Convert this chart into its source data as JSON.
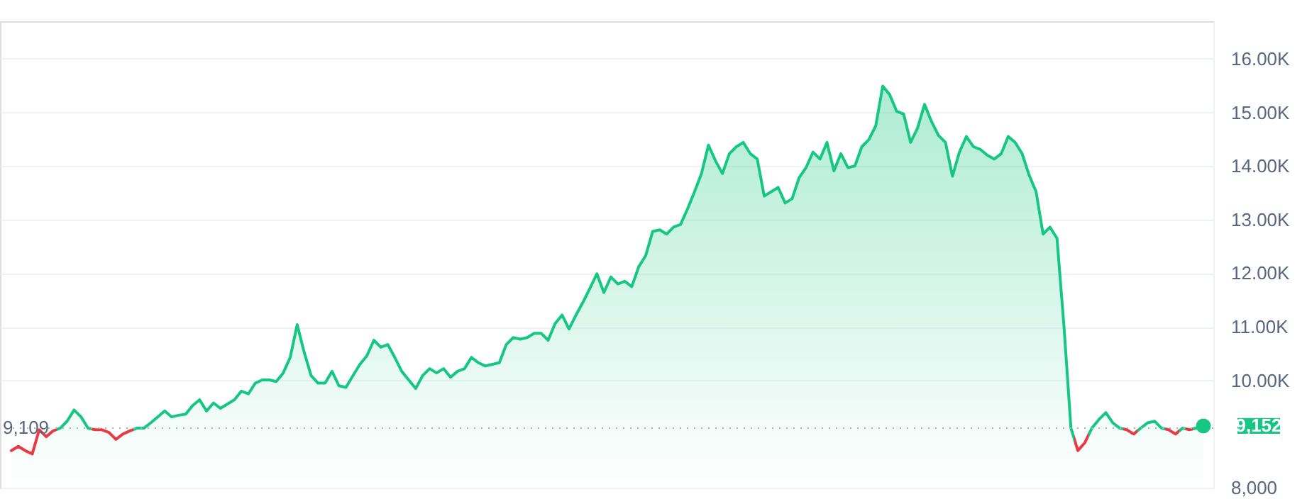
{
  "chart_data": {
    "type": "area",
    "categories": [
      null,
      null,
      null,
      null,
      null,
      null,
      null,
      null,
      null,
      null,
      null,
      null,
      null,
      null,
      null,
      null,
      null,
      null,
      null,
      null,
      null,
      null,
      null,
      null,
      null,
      null,
      null,
      null,
      null,
      null,
      null,
      null,
      null,
      null,
      null,
      null,
      null,
      null,
      null,
      null,
      null,
      null,
      null,
      null,
      null,
      null,
      null,
      null,
      null,
      null,
      null,
      null,
      null,
      null,
      null,
      null,
      null,
      null,
      null,
      null,
      null,
      null,
      null,
      null,
      null,
      null,
      null,
      null,
      null,
      null,
      null,
      null,
      null,
      null,
      null,
      null,
      null,
      null,
      null,
      null,
      null,
      null,
      null,
      null,
      null,
      null,
      null,
      null,
      null,
      null,
      null,
      null,
      null,
      null,
      null,
      null,
      null,
      null,
      null,
      null,
      null,
      null,
      null,
      null,
      null,
      null,
      null,
      null,
      null,
      null,
      null,
      null,
      null,
      null,
      null,
      null,
      null,
      null,
      null,
      null,
      null,
      null,
      null,
      null,
      null,
      null,
      null,
      null,
      null,
      null,
      null,
      null,
      null,
      null,
      null,
      null,
      null,
      null,
      null,
      null,
      null,
      null,
      null,
      null,
      null,
      null,
      null,
      null,
      null,
      null,
      null,
      null,
      null,
      null,
      null,
      null,
      null,
      null,
      null,
      null,
      null,
      null,
      null,
      null,
      null,
      null,
      null,
      null,
      null,
      null,
      null,
      null
    ],
    "series": [
      {
        "color": "#16c784",
        "colors": [
          "#ea3943",
          "#ea3943",
          "#ea3943",
          "#ea3943",
          "#ea3943",
          "#ea3943",
          "#ea3943",
          "#16c784",
          "#16c784",
          "#16c784",
          "#16c784",
          "#16c784",
          "#ea3943",
          "#ea3943",
          "#ea3943",
          "#ea3943",
          "#ea3943",
          "#ea3943",
          "#16c784",
          "#16c784",
          "#16c784",
          "#16c784",
          "#16c784",
          "#16c784",
          "#16c784",
          "#16c784",
          "#16c784",
          "#16c784",
          "#16c784",
          "#16c784",
          "#16c784",
          "#16c784",
          "#16c784",
          "#16c784",
          "#16c784",
          "#16c784",
          "#16c784",
          "#16c784",
          "#16c784",
          "#16c784",
          "#16c784",
          "#16c784",
          "#16c784",
          "#16c784",
          "#16c784",
          "#16c784",
          "#16c784",
          "#16c784",
          "#16c784",
          "#16c784",
          "#16c784",
          "#16c784",
          "#16c784",
          "#16c784",
          "#16c784",
          "#16c784",
          "#16c784",
          "#16c784",
          "#16c784",
          "#16c784",
          "#16c784",
          "#16c784",
          "#16c784",
          "#16c784",
          "#16c784",
          "#16c784",
          "#16c784",
          "#16c784",
          "#16c784",
          "#16c784",
          "#16c784",
          "#16c784",
          "#16c784",
          "#16c784",
          "#16c784",
          "#16c784",
          "#16c784",
          "#16c784",
          "#16c784",
          "#16c784",
          "#16c784",
          "#16c784",
          "#16c784",
          "#16c784",
          "#16c784",
          "#16c784",
          "#16c784",
          "#16c784",
          "#16c784",
          "#16c784",
          "#16c784",
          "#16c784",
          "#16c784",
          "#16c784",
          "#16c784",
          "#16c784",
          "#16c784",
          "#16c784",
          "#16c784",
          "#16c784",
          "#16c784",
          "#16c784",
          "#16c784",
          "#16c784",
          "#16c784",
          "#16c784",
          "#16c784",
          "#16c784",
          "#16c784",
          "#16c784",
          "#16c784",
          "#16c784",
          "#16c784",
          "#16c784",
          "#16c784",
          "#16c784",
          "#16c784",
          "#16c784",
          "#16c784",
          "#16c784",
          "#16c784",
          "#16c784",
          "#16c784",
          "#16c784",
          "#16c784",
          "#16c784",
          "#16c784",
          "#16c784",
          "#16c784",
          "#16c784",
          "#16c784",
          "#16c784",
          "#16c784",
          "#16c784",
          "#16c784",
          "#16c784",
          "#16c784",
          "#16c784",
          "#16c784",
          "#16c784",
          "#16c784",
          "#16c784",
          "#16c784",
          "#16c784",
          "#16c784",
          "#16c784",
          "#16c784",
          "#16c784",
          "#16c784",
          "#16c784",
          "#16c784",
          "#16c784",
          "#16c784",
          "#ea3943",
          "#ea3943",
          "#16c784",
          "#16c784",
          "#16c784",
          "#16c784",
          "#16c784",
          "#ea3943",
          "#ea3943",
          "#16c784",
          "#16c784",
          "#16c784",
          "#16c784",
          "#ea3943",
          "#ea3943",
          "#16c784",
          "#ea3943",
          "#16c784",
          "#16c784"
        ],
        "values": [
          8690,
          8770,
          8690,
          8630,
          9080,
          8950,
          9060,
          9110,
          9240,
          9450,
          9320,
          9110,
          9080,
          9080,
          9030,
          8900,
          9000,
          9060,
          9110,
          9110,
          9210,
          9320,
          9430,
          9320,
          9350,
          9370,
          9530,
          9640,
          9430,
          9580,
          9480,
          9560,
          9640,
          9800,
          9750,
          9950,
          10010,
          10010,
          9980,
          10140,
          10430,
          11040,
          10530,
          10090,
          9950,
          9950,
          10170,
          9900,
          9870,
          10090,
          10300,
          10460,
          10750,
          10620,
          10670,
          10430,
          10170,
          10010,
          9850,
          10090,
          10220,
          10140,
          10220,
          10060,
          10170,
          10220,
          10430,
          10330,
          10270,
          10300,
          10330,
          10670,
          10800,
          10770,
          10800,
          10880,
          10880,
          10750,
          11060,
          11220,
          10960,
          11220,
          11460,
          11720,
          11990,
          11640,
          11930,
          11800,
          11850,
          11750,
          12120,
          12330,
          12780,
          12810,
          12730,
          12860,
          12910,
          13200,
          13520,
          13860,
          14390,
          14100,
          13860,
          14230,
          14360,
          14440,
          14230,
          14130,
          13440,
          13520,
          13600,
          13310,
          13390,
          13780,
          13970,
          14260,
          14130,
          14440,
          13910,
          14230,
          13970,
          14000,
          14360,
          14490,
          14750,
          15490,
          15330,
          15020,
          14970,
          14440,
          14710,
          15150,
          14830,
          14570,
          14440,
          13810,
          14260,
          14550,
          14360,
          14310,
          14200,
          14130,
          14230,
          14550,
          14440,
          14230,
          13830,
          13520,
          12730,
          12860,
          12650,
          11010,
          9110,
          8690,
          8840,
          9110,
          9270,
          9400,
          9210,
          9110,
          9080,
          9000,
          9110,
          9210,
          9240,
          9110,
          9080,
          9000,
          9110,
          9080,
          9110,
          9152
        ]
      }
    ],
    "ylim": [
      8000,
      16700
    ],
    "yticks": [
      {
        "value": 8000,
        "label": "8,000"
      },
      {
        "value": 10000,
        "label": "10.00K"
      },
      {
        "value": 11000,
        "label": "11.00K"
      },
      {
        "value": 12000,
        "label": "12.00K"
      },
      {
        "value": 13000,
        "label": "13.00K"
      },
      {
        "value": 14000,
        "label": "14.00K"
      },
      {
        "value": 15000,
        "label": "15.00K"
      },
      {
        "value": 16000,
        "label": "16.00K"
      }
    ],
    "tick_labels": "y",
    "grid": "y",
    "ref_lines": [
      {
        "axis": "y",
        "value": 9109,
        "label": "9,109",
        "color": "#a6b0c3",
        "line_style": "dotted"
      }
    ],
    "annotations": [
      "9,152"
    ]
  }
}
